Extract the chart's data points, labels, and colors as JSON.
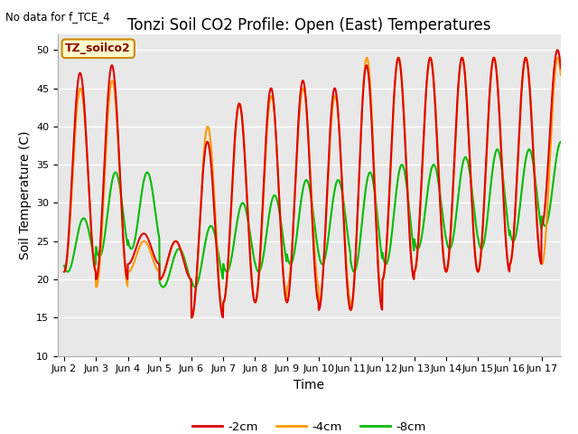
{
  "title": "Tonzi Soil CO2 Profile: Open (East) Temperatures",
  "no_data_label": "No data for f_TCE_4",
  "site_label": "TZ_soilco2",
  "xlabel": "Time",
  "ylabel": "Soil Temperature (C)",
  "ylim": [
    10,
    52
  ],
  "yticks": [
    10,
    15,
    20,
    25,
    30,
    35,
    40,
    45,
    50
  ],
  "xtick_labels": [
    "Jun 2",
    "Jun 3",
    "Jun 4",
    "Jun 5",
    "Jun 6",
    "Jun 7",
    "Jun 8",
    "Jun 9",
    "Jun 10",
    "Jun 11",
    "Jun 12",
    "Jun 13",
    "Jun 14",
    "Jun 15",
    "Jun 16",
    "Jun 17"
  ],
  "xtick_positions": [
    1,
    2,
    3,
    4,
    5,
    6,
    7,
    8,
    9,
    10,
    11,
    12,
    13,
    14,
    15,
    16
  ],
  "line_2cm_color": "#dd0000",
  "line_4cm_color": "#ff9900",
  "line_8cm_color": "#00bb00",
  "line_width": 1.5,
  "fig_bg_color": "#ffffff",
  "plot_bg_color": "#e8e8e8",
  "grid_color": "#ffffff",
  "legend_labels": [
    "-2cm",
    "-4cm",
    "-8cm"
  ],
  "title_fontsize": 12,
  "axis_label_fontsize": 10,
  "tick_fontsize": 8,
  "peaks_2cm": [
    47,
    48,
    26,
    25,
    38,
    43,
    45,
    46,
    45,
    48,
    49,
    49,
    49,
    49,
    49,
    50
  ],
  "mins_2cm": [
    21,
    20,
    22,
    20,
    15,
    17,
    17,
    17,
    16,
    16,
    20,
    21,
    21,
    21,
    22,
    27
  ],
  "peaks_4cm": [
    45,
    46,
    25,
    25,
    40,
    43,
    44,
    45,
    44,
    49,
    49,
    49,
    49,
    49,
    49,
    49
  ],
  "mins_4cm": [
    21,
    19,
    21,
    20,
    15,
    17,
    17,
    19,
    17,
    16,
    20,
    21,
    21,
    21,
    22,
    22
  ],
  "peaks_8cm": [
    28,
    34,
    34,
    24,
    27,
    30,
    31,
    33,
    33,
    34,
    35,
    35,
    36,
    37,
    37,
    38
  ],
  "mins_8cm": [
    21,
    23,
    24,
    19,
    19,
    21,
    21,
    22,
    22,
    21,
    22,
    24,
    24,
    24,
    25,
    27
  ]
}
